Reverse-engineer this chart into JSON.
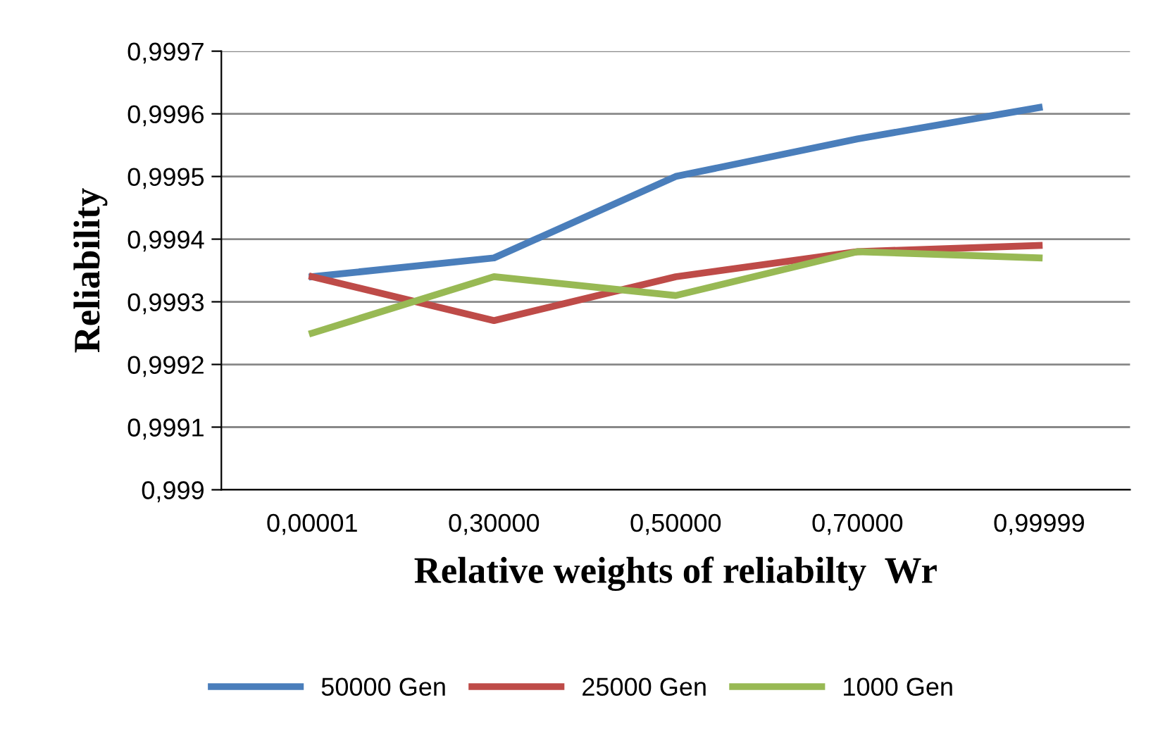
{
  "chart_data": {
    "type": "line",
    "xlabel": "Relative weights of reliabilty  Wr",
    "ylabel": "Reliability",
    "categories": [
      "0,00001",
      "0,30000",
      "0,50000",
      "0,70000",
      "0,99999"
    ],
    "series": [
      {
        "name": "50000 Gen",
        "color": "#4a7ebb",
        "values": [
          0.99934,
          0.99937,
          0.9995,
          0.99956,
          0.99961
        ]
      },
      {
        "name": "25000 Gen",
        "color": "#be4b48",
        "values": [
          0.99934,
          0.99927,
          0.99934,
          0.99938,
          0.99939
        ]
      },
      {
        "name": "1000 Gen",
        "color": "#98b954",
        "values": [
          0.99925,
          0.99934,
          0.99931,
          0.99938,
          0.99937
        ]
      }
    ],
    "ylim": [
      0.999,
      0.9997
    ],
    "yticks": [
      {
        "value": 0.999,
        "label": "0,999"
      },
      {
        "value": 0.9991,
        "label": "0,9991"
      },
      {
        "value": 0.9992,
        "label": "0,9992"
      },
      {
        "value": 0.9993,
        "label": "0,9993"
      },
      {
        "value": 0.9994,
        "label": "0,9994"
      },
      {
        "value": 0.9995,
        "label": "0,9995"
      },
      {
        "value": 0.9996,
        "label": "0,9996"
      },
      {
        "value": 0.9997,
        "label": "0,9997"
      }
    ],
    "grid": "y",
    "legend": "bottom",
    "marker": "none",
    "line_style": "solid"
  }
}
